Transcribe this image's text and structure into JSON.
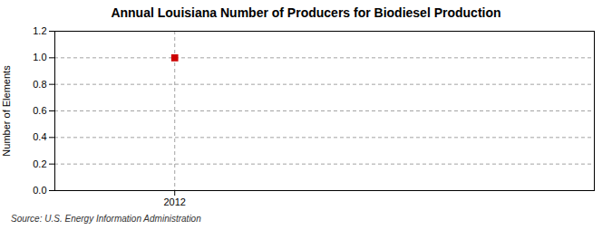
{
  "chart_data": {
    "type": "scatter",
    "title": "Annual Louisiana Number of Producers for Biodiesel Production",
    "ylabel": "Number of Elements",
    "annotations": [
      "Source: U.S. Energy Information Administration"
    ],
    "x": [
      2012
    ],
    "values": [
      1.0
    ],
    "color": "#cc0000",
    "marker": "square",
    "xlim": [
      2011.6,
      2013.4
    ],
    "xticks": [
      2012
    ],
    "ylim": [
      0.0,
      1.2
    ],
    "yticks": [
      {
        "value": 0,
        "label": "0.0"
      },
      0.2,
      0.4,
      0.6,
      0.8,
      {
        "value": 1,
        "label": "1.0"
      },
      1.2
    ],
    "grid": true
  }
}
